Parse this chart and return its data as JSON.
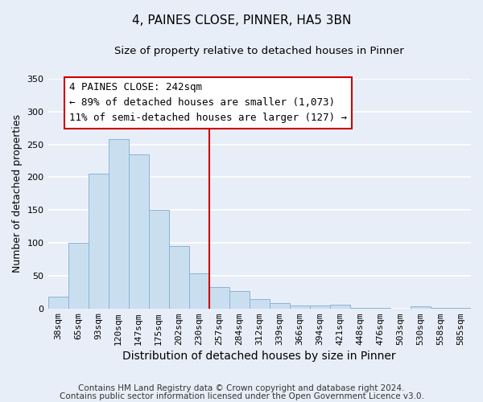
{
  "title": "4, PAINES CLOSE, PINNER, HA5 3BN",
  "subtitle": "Size of property relative to detached houses in Pinner",
  "xlabel": "Distribution of detached houses by size in Pinner",
  "ylabel": "Number of detached properties",
  "categories": [
    "38sqm",
    "65sqm",
    "93sqm",
    "120sqm",
    "147sqm",
    "175sqm",
    "202sqm",
    "230sqm",
    "257sqm",
    "284sqm",
    "312sqm",
    "339sqm",
    "366sqm",
    "394sqm",
    "421sqm",
    "448sqm",
    "476sqm",
    "503sqm",
    "530sqm",
    "558sqm",
    "585sqm"
  ],
  "values": [
    18,
    100,
    205,
    258,
    235,
    150,
    95,
    53,
    33,
    26,
    14,
    8,
    5,
    5,
    6,
    1,
    1,
    0,
    3,
    1,
    1
  ],
  "bar_color": "#c9dff0",
  "bar_edge_color": "#8ab4d4",
  "bar_width": 1.0,
  "ylim": [
    0,
    350
  ],
  "yticks": [
    0,
    50,
    100,
    150,
    200,
    250,
    300,
    350
  ],
  "vline_color": "#cc0000",
  "annotation_title": "4 PAINES CLOSE: 242sqm",
  "annotation_line1": "← 89% of detached houses are smaller (1,073)",
  "annotation_line2": "11% of semi-detached houses are larger (127) →",
  "annotation_box_edge_color": "#cc0000",
  "footer_line1": "Contains HM Land Registry data © Crown copyright and database right 2024.",
  "footer_line2": "Contains public sector information licensed under the Open Government Licence v3.0.",
  "fig_background_color": "#e8eef8",
  "plot_background": "#e8eef8",
  "grid_color": "#ffffff",
  "title_fontsize": 11,
  "subtitle_fontsize": 9.5,
  "xlabel_fontsize": 10,
  "ylabel_fontsize": 9,
  "tick_fontsize": 8,
  "footer_fontsize": 7.5,
  "annotation_fontsize": 9
}
